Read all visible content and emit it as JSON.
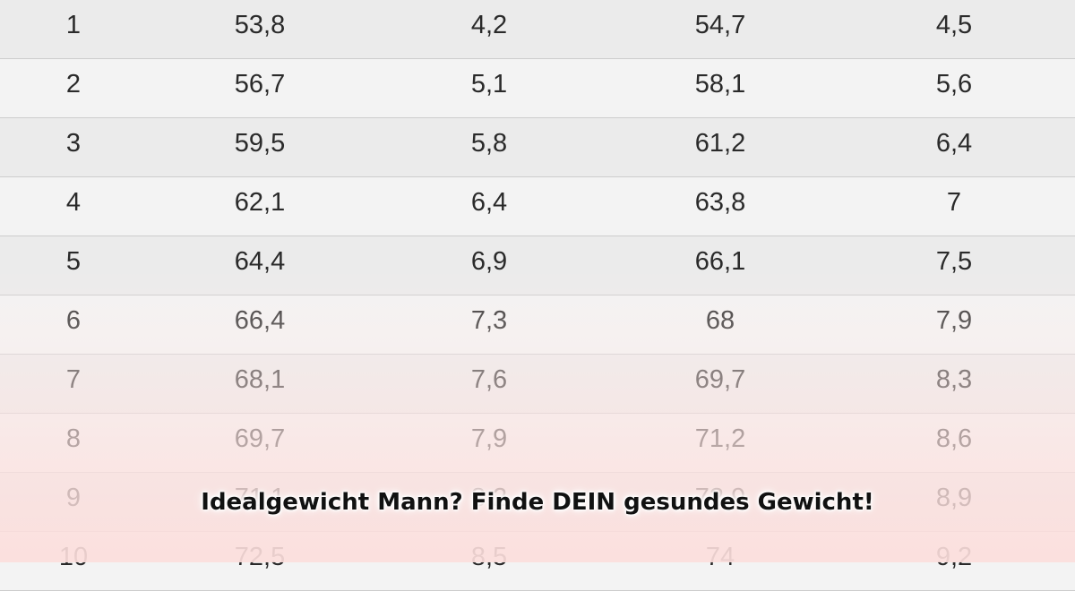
{
  "table": {
    "rows": [
      [
        "1",
        "53,8",
        "4,2",
        "54,7",
        "4,5"
      ],
      [
        "2",
        "56,7",
        "5,1",
        "58,1",
        "5,6"
      ],
      [
        "3",
        "59,5",
        "5,8",
        "61,2",
        "6,4"
      ],
      [
        "4",
        "62,1",
        "6,4",
        "63,8",
        "7"
      ],
      [
        "5",
        "64,4",
        "6,9",
        "66,1",
        "7,5"
      ],
      [
        "6",
        "66,4",
        "7,3",
        "68",
        "7,9"
      ],
      [
        "7",
        "68,1",
        "7,6",
        "69,7",
        "8,3"
      ],
      [
        "8",
        "69,7",
        "7,9",
        "71,2",
        "8,6"
      ],
      [
        "9",
        "71,1",
        "8,2",
        "72,9",
        "8,9"
      ],
      [
        "10",
        "72,5",
        "8,5",
        "74",
        "9,2"
      ]
    ]
  },
  "caption": "Idealgewicht Mann? Finde DEIN gesundes Gewicht!"
}
